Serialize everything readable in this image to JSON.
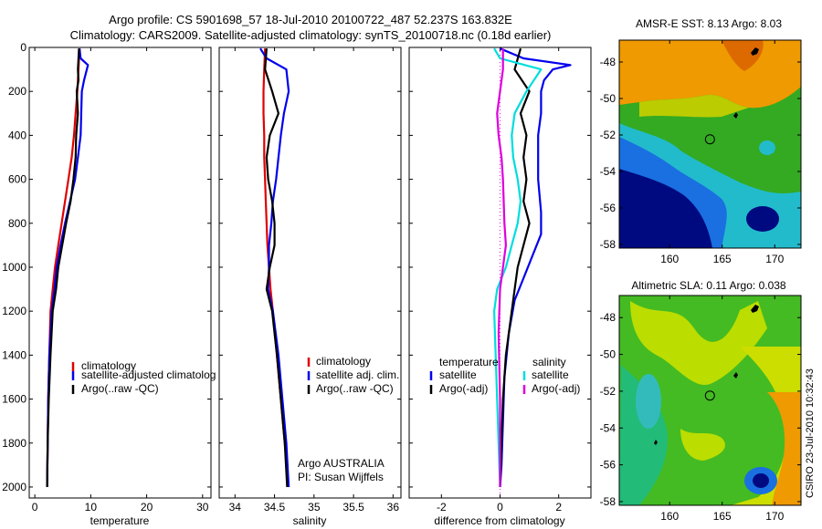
{
  "header": {
    "title_line1": "Argo profile: CS 5901698_57 18-Jul-2010 20100722_487 52.237S 163.832E",
    "title_line2": "Climatology: CARS2009. Satellite-adjusted climatology: synTS_20100718.nc (0.18d earlier)"
  },
  "colors": {
    "climatology": "#e00000",
    "satellite": "#0000ee",
    "argo": "#000000",
    "sat_salinity": "#00dddd",
    "argo_adj_sal": "#dd00dd",
    "zero_line": "#ff00ff"
  },
  "chart_data": [
    {
      "type": "line",
      "id": "temperature",
      "xlabel": "temperature",
      "ylabel": "",
      "xlim": [
        -1,
        31.5
      ],
      "ylim": [
        2050,
        0
      ],
      "xticks": [
        0,
        10,
        20,
        30
      ],
      "yticks": [
        0,
        200,
        400,
        600,
        800,
        1000,
        1200,
        1400,
        1600,
        1800,
        2000
      ],
      "legend": [
        "climatology",
        "satellite-adjusted climatology",
        "Argo(..raw -QC)"
      ],
      "legend_visible": [
        "climatology",
        "satellite-adjusted climatolog",
        "Argo(..raw -QC)"
      ],
      "legend_position": "lower-right",
      "series": [
        {
          "name": "climatology",
          "color": "#e00000",
          "x": [
            8.0,
            7.8,
            7.6,
            7.3,
            7.0,
            6.6,
            6.0,
            5.4,
            4.8,
            4.2,
            3.6,
            3.2,
            2.8,
            2.6,
            2.4,
            2.3,
            2.2
          ],
          "y": [
            5,
            100,
            200,
            300,
            400,
            500,
            600,
            700,
            800,
            900,
            1000,
            1100,
            1200,
            1400,
            1600,
            1800,
            2000
          ]
        },
        {
          "name": "satellite-adjusted climatology",
          "color": "#0000ee",
          "x": [
            8.0,
            8.2,
            9.5,
            8.8,
            8.4,
            8.2,
            7.7,
            7.2,
            6.3,
            5.4,
            4.6,
            3.9,
            3.5,
            3.0,
            2.6,
            2.4,
            2.3,
            2.2
          ],
          "y": [
            5,
            50,
            80,
            150,
            200,
            400,
            500,
            600,
            700,
            800,
            900,
            1000,
            1100,
            1200,
            1400,
            1600,
            1800,
            2000
          ]
        },
        {
          "name": "Argo(..raw -QC)",
          "color": "#000000",
          "x": [
            7.9,
            7.7,
            7.8,
            7.5,
            7.7,
            7.4,
            7.3,
            6.9,
            6.4,
            5.6,
            4.9,
            4.2,
            3.8,
            3.2,
            2.8,
            2.5,
            2.3,
            2.2
          ],
          "y": [
            5,
            100,
            150,
            200,
            300,
            400,
            500,
            600,
            700,
            800,
            900,
            1000,
            1100,
            1200,
            1400,
            1600,
            1800,
            2000
          ]
        }
      ]
    },
    {
      "type": "line",
      "id": "salinity",
      "xlabel": "salinity",
      "ylabel": "",
      "xlim": [
        33.8,
        36.1
      ],
      "ylim": [
        2050,
        0
      ],
      "xticks": [
        34,
        34.5,
        35,
        35.5,
        36
      ],
      "yticks": [
        0,
        200,
        400,
        600,
        800,
        1000,
        1200,
        1400,
        1600,
        1800,
        2000
      ],
      "legend": [
        "climatology",
        "satellite adj. clim.",
        "Argo(..raw -QC)"
      ],
      "legend_position": "lower-right",
      "annotation_line1": "Argo AUSTRALIA",
      "annotation_line2": "PI: Susan Wijffels",
      "series": [
        {
          "name": "climatology",
          "color": "#e00000",
          "x": [
            34.38,
            34.37,
            34.36,
            34.36,
            34.37,
            34.37,
            34.38,
            34.39,
            34.4,
            34.41,
            34.43,
            34.45,
            34.48,
            34.53,
            34.58,
            34.63,
            34.68
          ],
          "y": [
            5,
            100,
            200,
            300,
            400,
            500,
            600,
            700,
            800,
            900,
            1000,
            1100,
            1200,
            1400,
            1600,
            1800,
            2000
          ]
        },
        {
          "name": "satellite adj. clim.",
          "color": "#0000ee",
          "x": [
            34.32,
            34.4,
            34.65,
            34.68,
            34.62,
            34.58,
            34.55,
            34.52,
            34.48,
            34.46,
            34.43,
            34.43,
            34.42,
            34.48,
            34.55,
            34.6,
            34.65,
            34.68
          ],
          "y": [
            5,
            50,
            100,
            200,
            300,
            400,
            500,
            600,
            700,
            800,
            900,
            1000,
            1100,
            1200,
            1400,
            1600,
            1800,
            2000
          ]
        },
        {
          "name": "Argo(..raw -QC)",
          "color": "#000000",
          "x": [
            34.4,
            34.38,
            34.47,
            34.55,
            34.44,
            34.4,
            34.42,
            34.47,
            34.5,
            34.5,
            34.44,
            34.42,
            34.4,
            34.47,
            34.53,
            34.58,
            34.63,
            34.66
          ],
          "y": [
            5,
            100,
            200,
            300,
            400,
            500,
            600,
            700,
            800,
            900,
            1000,
            1050,
            1100,
            1200,
            1400,
            1600,
            1800,
            2000
          ]
        }
      ]
    },
    {
      "type": "line",
      "id": "difference",
      "xlabel": "difference from climatology",
      "ylabel": "",
      "xlim": [
        -3.1,
        3.1
      ],
      "ylim": [
        2050,
        0
      ],
      "xticks": [
        -2,
        0,
        2
      ],
      "yticks": [
        0,
        200,
        400,
        600,
        800,
        1000,
        1200,
        1400,
        1600,
        1800,
        2000
      ],
      "legend_heading_left": "temperature",
      "legend_heading_right": "salinity",
      "legend": [
        "satellite",
        "Argo(-adj)",
        "satellite",
        "Argo(-adj)"
      ],
      "legend_position": "lower-right",
      "series": [
        {
          "name": "satellite",
          "color": "#0000ee",
          "x": [
            0.0,
            0.8,
            2.4,
            1.8,
            1.5,
            1.4,
            1.4,
            1.3,
            1.3,
            1.4,
            1.4,
            1.1,
            0.8,
            0.5,
            0.3,
            0.15,
            0.1,
            0.05,
            0.0
          ],
          "y": [
            5,
            50,
            80,
            100,
            150,
            200,
            300,
            400,
            600,
            750,
            850,
            950,
            1050,
            1150,
            1300,
            1500,
            1700,
            1900,
            2000
          ]
        },
        {
          "name": "Argo(-adj)",
          "color": "#000000",
          "x": [
            0.7,
            0.5,
            1.0,
            0.7,
            0.9,
            0.8,
            0.9,
            0.8,
            1.0,
            0.8,
            0.6,
            0.5,
            0.4,
            0.3,
            0.2,
            0.1,
            0.05,
            0.0
          ],
          "y": [
            5,
            100,
            200,
            300,
            400,
            500,
            600,
            700,
            800,
            900,
            1000,
            1100,
            1200,
            1300,
            1400,
            1600,
            1800,
            2000
          ]
        },
        {
          "name": "satellite",
          "color": "#00dddd",
          "x": [
            -0.2,
            0.0,
            1.4,
            0.9,
            0.5,
            0.4,
            0.45,
            0.6,
            0.7,
            0.6,
            0.4,
            0.2,
            -0.1,
            -0.2,
            -0.15,
            -0.1,
            -0.05,
            0.0
          ],
          "y": [
            5,
            50,
            100,
            200,
            300,
            400,
            500,
            600,
            700,
            800,
            900,
            1000,
            1100,
            1200,
            1400,
            1600,
            1800,
            2000
          ]
        },
        {
          "name": "Argo(-adj)",
          "color": "#dd00dd",
          "x": [
            0.1,
            0.1,
            0.0,
            -0.1,
            -0.05,
            0.05,
            0.1,
            0.15,
            0.2,
            0.1,
            0.0,
            -0.05,
            0.0,
            0.0
          ],
          "y": [
            5,
            100,
            200,
            300,
            400,
            500,
            600,
            800,
            900,
            1000,
            1100,
            1300,
            1600,
            2000
          ]
        }
      ]
    },
    {
      "type": "heatmap",
      "id": "sst_map",
      "title": "AMSR-E SST: 8.13 Argo: 8.03",
      "xticks": [
        160,
        165,
        170
      ],
      "yticks": [
        -48,
        -50,
        -52,
        -54,
        -56,
        -58
      ],
      "xlim": [
        155.2,
        172.5
      ],
      "ylim": [
        -58.2,
        -46.8
      ],
      "marker": {
        "lon": 163.832,
        "lat": -52.237
      }
    },
    {
      "type": "heatmap",
      "id": "sla_map",
      "title": "Altimetric SLA: 0.11 Argo: 0.038",
      "xticks": [
        160,
        165,
        170
      ],
      "yticks": [
        -48,
        -50,
        -52,
        -54,
        -56,
        -58
      ],
      "xlim": [
        155.2,
        172.5
      ],
      "ylim": [
        -58.2,
        -46.8
      ],
      "marker": {
        "lon": 163.832,
        "lat": -52.237
      }
    }
  ],
  "footer": {
    "stamp": "CSIRO 23-Jul-2010 10:32:43"
  }
}
